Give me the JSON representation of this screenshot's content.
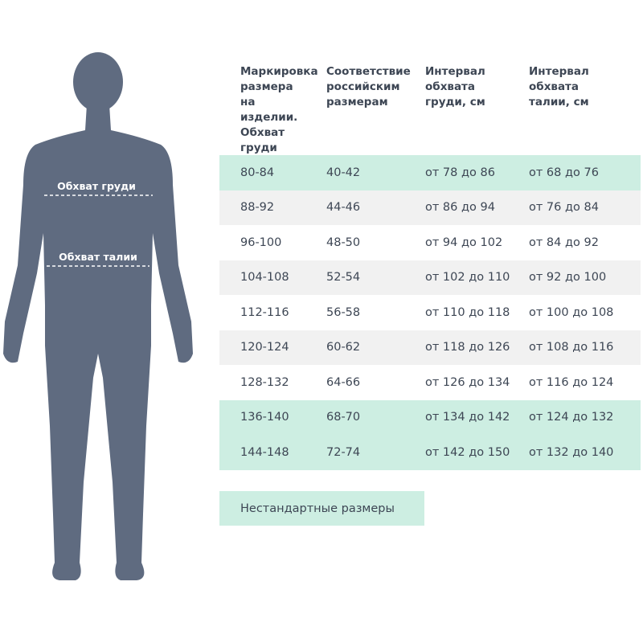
{
  "figure": {
    "labels": [
      "Обхват груди",
      "Обхват талии"
    ]
  },
  "table": {
    "header": [
      "Маркировка размера на изделии. Обхват груди",
      "Соответствие российским размерам",
      "Интервал обхвата груди, см",
      "Интервал обхвата талии, см"
    ],
    "rows": [
      {
        "cells": [
          "80-84",
          "40-42",
          "от 78 до 86",
          "от 68 до 76"
        ],
        "highlight": true
      },
      {
        "cells": [
          "88-92",
          "44-46",
          "от 86 до 94",
          "от 76 до 84"
        ],
        "highlight": false
      },
      {
        "cells": [
          "96-100",
          "48-50",
          "от 94 до 102",
          "от 84 до 92"
        ],
        "highlight": false
      },
      {
        "cells": [
          "104-108",
          "52-54",
          "от 102 до 110",
          "от 92 до 100"
        ],
        "highlight": false
      },
      {
        "cells": [
          "112-116",
          "56-58",
          "от 110 до 118",
          "от 100 до 108"
        ],
        "highlight": false
      },
      {
        "cells": [
          "120-124",
          "60-62",
          "от 118 до 126",
          "от 108 до 116"
        ],
        "highlight": false
      },
      {
        "cells": [
          "128-132",
          "64-66",
          "от 126 до 134",
          "от 116 до 124"
        ],
        "highlight": false
      },
      {
        "cells": [
          "136-140",
          "68-70",
          "от 134 до 142",
          "от 124 до 132"
        ],
        "highlight": true
      },
      {
        "cells": [
          "144-148",
          "72-74",
          "от 142 до 150",
          "от 132 до 140"
        ],
        "highlight": true
      }
    ],
    "note": "Нестандартные размеры"
  }
}
